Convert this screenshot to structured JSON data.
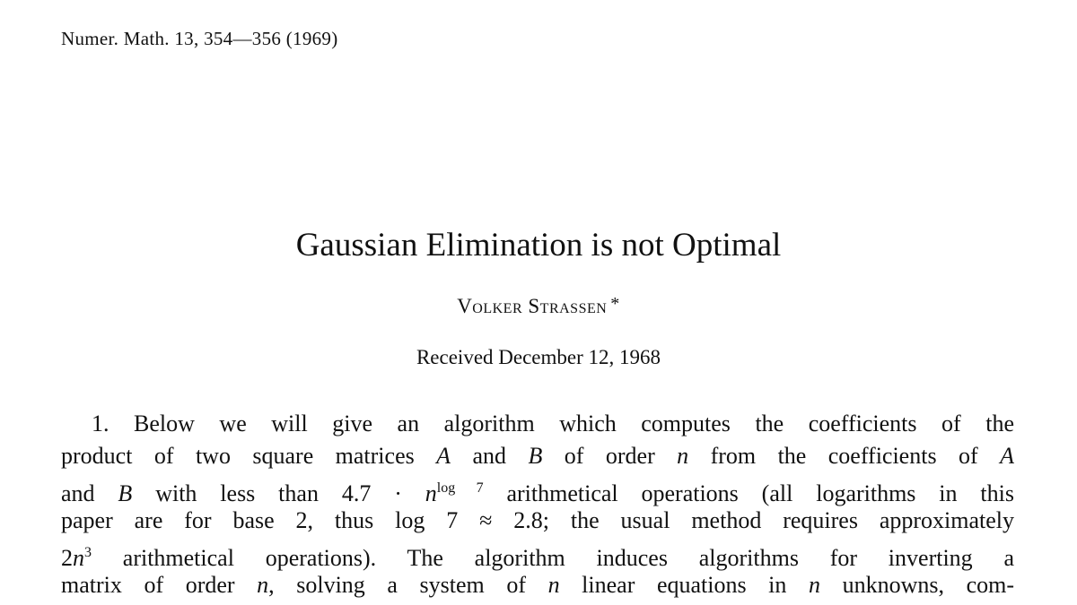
{
  "header": {
    "journal": "Numer. Math. 13, 354—356 (1969)"
  },
  "title": "Gaussian Elimination is not Optimal",
  "author": {
    "name": "Volker Strassen",
    "mark": "*"
  },
  "received": "Received December 12, 1968",
  "body": {
    "lines": [
      [
        "1. Below we will give an algorithm which computes the coefficients of the"
      ],
      [
        "product of two square matrices ",
        {
          "text": "A",
          "italic": true
        },
        " and ",
        {
          "text": "B",
          "italic": true
        },
        " of order ",
        {
          "text": "n",
          "italic": true
        },
        " from the coefficients of ",
        {
          "text": "A",
          "italic": true
        }
      ],
      [
        "and ",
        {
          "text": "B",
          "italic": true
        },
        " with less than 4.7 · ",
        {
          "text": "n",
          "italic": true
        },
        {
          "text": "log 7",
          "sup": true
        },
        " arithmetical operations (all logarithms in this"
      ],
      [
        "paper are for base 2, thus log 7 ≈ 2.8; the usual method requires approximately"
      ],
      [
        "2",
        {
          "text": "n",
          "italic": true
        },
        {
          "text": "3",
          "sup": true
        },
        " arithmetical operations). The algorithm induces algorithms for inverting a"
      ],
      [
        "matrix of order ",
        {
          "text": "n",
          "italic": true
        },
        ", solving a system of ",
        {
          "text": "n",
          "italic": true
        },
        " linear equations in ",
        {
          "text": "n",
          "italic": true
        },
        " unknowns, com-"
      ]
    ]
  }
}
